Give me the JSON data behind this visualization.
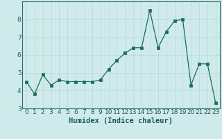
{
  "x": [
    0,
    1,
    2,
    3,
    4,
    5,
    6,
    7,
    8,
    9,
    10,
    11,
    12,
    13,
    14,
    15,
    16,
    17,
    18,
    19,
    20,
    21,
    22,
    23
  ],
  "y": [
    4.5,
    3.8,
    4.9,
    4.3,
    4.6,
    4.5,
    4.5,
    4.5,
    4.5,
    4.6,
    5.2,
    5.7,
    6.1,
    6.4,
    6.4,
    8.5,
    6.4,
    7.3,
    7.9,
    8.0,
    4.3,
    5.5,
    5.5,
    3.3
  ],
  "xlabel": "Humidex (Indice chaleur)",
  "xlim": [
    -0.5,
    23.5
  ],
  "ylim": [
    3.0,
    9.0
  ],
  "yticks": [
    3,
    4,
    5,
    6,
    7,
    8
  ],
  "xticks": [
    0,
    1,
    2,
    3,
    4,
    5,
    6,
    7,
    8,
    9,
    10,
    11,
    12,
    13,
    14,
    15,
    16,
    17,
    18,
    19,
    20,
    21,
    22,
    23
  ],
  "line_color": "#1a6b5a",
  "marker_color": "#1a6b5a",
  "bg_color": "#ceeaea",
  "grid_color": "#b8d8d8",
  "xlabel_fontsize": 7.5,
  "tick_fontsize": 6.5
}
